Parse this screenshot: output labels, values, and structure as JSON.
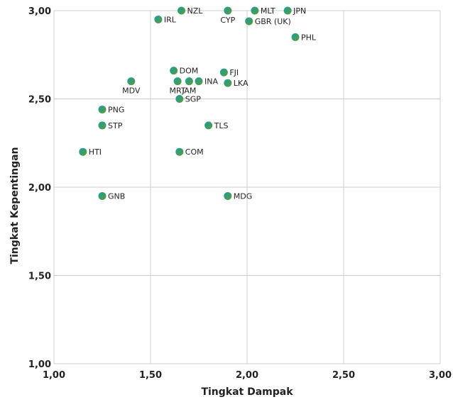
{
  "chart_data": {
    "type": "scatter",
    "xlabel": "Tingkat Dampak",
    "ylabel": "Tingkat Kepentingan",
    "xlim": [
      1.0,
      3.0
    ],
    "ylim": [
      1.0,
      3.0
    ],
    "x_ticks": [
      "1,00",
      "1,50",
      "2,00",
      "2,50",
      "3,00"
    ],
    "y_ticks": [
      "1,00",
      "1,50",
      "2,00",
      "2,50",
      "3,00"
    ],
    "grid": true,
    "marker_colors": [
      "#1a9fa0",
      "#5b9a3a"
    ],
    "points": [
      {
        "label": "NZL",
        "x": 1.66,
        "y": 3.0,
        "pos": "right"
      },
      {
        "label": "CYP",
        "x": 1.9,
        "y": 3.0,
        "pos": "below"
      },
      {
        "label": "MLT",
        "x": 2.04,
        "y": 3.0,
        "pos": "right"
      },
      {
        "label": "JPN",
        "x": 2.21,
        "y": 3.0,
        "pos": "right"
      },
      {
        "label": "IRL",
        "x": 1.54,
        "y": 2.95,
        "pos": "right"
      },
      {
        "label": "GBR (UK)",
        "x": 2.01,
        "y": 2.94,
        "pos": "right"
      },
      {
        "label": "PHL",
        "x": 2.25,
        "y": 2.85,
        "pos": "right"
      },
      {
        "label": "DOM",
        "x": 1.62,
        "y": 2.66,
        "pos": "right"
      },
      {
        "label": "FJI",
        "x": 1.88,
        "y": 2.65,
        "pos": "right"
      },
      {
        "label": "MDV",
        "x": 1.4,
        "y": 2.6,
        "pos": "below"
      },
      {
        "label": "MRT",
        "x": 1.64,
        "y": 2.6,
        "pos": "below"
      },
      {
        "label": "JAM",
        "x": 1.7,
        "y": 2.6,
        "pos": "below"
      },
      {
        "label": "INA",
        "x": 1.75,
        "y": 2.6,
        "pos": "right"
      },
      {
        "label": "LKA",
        "x": 1.9,
        "y": 2.59,
        "pos": "right"
      },
      {
        "label": "SGP",
        "x": 1.65,
        "y": 2.5,
        "pos": "right"
      },
      {
        "label": "PNG",
        "x": 1.25,
        "y": 2.44,
        "pos": "right"
      },
      {
        "label": "STP",
        "x": 1.25,
        "y": 2.35,
        "pos": "right"
      },
      {
        "label": "TLS",
        "x": 1.8,
        "y": 2.35,
        "pos": "right"
      },
      {
        "label": "HTI",
        "x": 1.15,
        "y": 2.2,
        "pos": "right"
      },
      {
        "label": "COM",
        "x": 1.65,
        "y": 2.2,
        "pos": "right"
      },
      {
        "label": "GNB",
        "x": 1.25,
        "y": 1.95,
        "pos": "right"
      },
      {
        "label": "MDG",
        "x": 1.9,
        "y": 1.95,
        "pos": "right"
      }
    ]
  }
}
